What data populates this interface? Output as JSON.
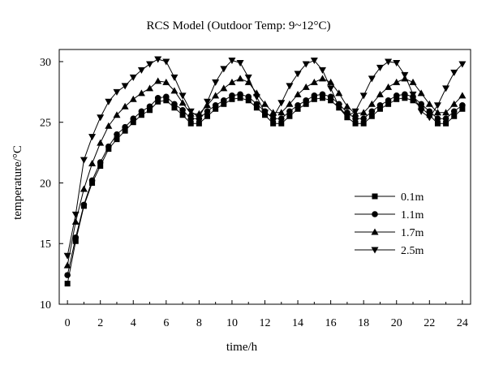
{
  "chart_data": {
    "type": "line",
    "title": "RCS Model (Outdoor Temp: 9~12°C)",
    "xlabel": "time/h",
    "ylabel": "temperature/°C",
    "xlim": [
      -0.5,
      24.5
    ],
    "ylim": [
      10,
      31
    ],
    "xticks": [
      0,
      2,
      4,
      6,
      8,
      10,
      12,
      14,
      16,
      18,
      20,
      22,
      24
    ],
    "yticks": [
      10,
      15,
      20,
      25,
      30
    ],
    "grid": false,
    "legend_position": "right",
    "x": [
      0,
      0.5,
      1,
      1.5,
      2,
      2.5,
      3,
      3.5,
      4,
      4.5,
      5,
      5.5,
      6,
      6.5,
      7,
      7.5,
      8,
      8.5,
      9,
      9.5,
      10,
      10.5,
      11,
      11.5,
      12,
      12.5,
      13,
      13.5,
      14,
      14.5,
      15,
      15.5,
      16,
      16.5,
      17,
      17.5,
      18,
      18.5,
      19,
      19.5,
      20,
      20.5,
      21,
      21.5,
      22,
      22.5,
      23,
      23.5,
      24
    ],
    "series": [
      {
        "name": "0.1m",
        "marker": "square",
        "values": [
          11.7,
          15.2,
          18.1,
          20.0,
          21.4,
          22.8,
          23.6,
          24.3,
          25.0,
          25.6,
          26.0,
          26.7,
          26.8,
          26.2,
          25.6,
          24.9,
          24.9,
          25.5,
          26.1,
          26.5,
          26.9,
          27.0,
          26.8,
          26.2,
          25.6,
          24.9,
          24.9,
          25.5,
          26.1,
          26.5,
          26.9,
          27.0,
          26.8,
          26.2,
          25.4,
          24.9,
          24.9,
          25.5,
          26.1,
          26.5,
          26.9,
          27.0,
          26.8,
          26.2,
          25.6,
          24.9,
          24.9,
          25.5,
          26.1
        ]
      },
      {
        "name": "1.1m",
        "marker": "circle",
        "values": [
          12.4,
          15.5,
          18.2,
          20.2,
          21.7,
          23.0,
          24.0,
          24.6,
          25.3,
          25.9,
          26.3,
          27.0,
          27.1,
          26.5,
          26.0,
          25.3,
          25.3,
          25.9,
          26.4,
          26.8,
          27.2,
          27.3,
          27.1,
          26.5,
          25.9,
          25.3,
          25.3,
          25.9,
          26.4,
          26.8,
          27.2,
          27.3,
          27.1,
          26.5,
          25.8,
          25.3,
          25.3,
          25.9,
          26.4,
          26.8,
          27.2,
          27.3,
          27.1,
          26.5,
          25.9,
          25.3,
          25.3,
          25.9,
          26.4
        ]
      },
      {
        "name": "1.7m",
        "marker": "triangle-up",
        "values": [
          13.2,
          16.8,
          19.5,
          21.6,
          23.3,
          24.7,
          25.6,
          26.3,
          26.9,
          27.4,
          27.8,
          28.4,
          28.3,
          27.6,
          26.6,
          25.7,
          25.7,
          26.4,
          27.2,
          27.8,
          28.3,
          28.6,
          28.3,
          27.4,
          26.5,
          25.8,
          25.8,
          26.5,
          27.3,
          27.9,
          28.3,
          28.6,
          28.3,
          27.4,
          26.3,
          25.7,
          25.8,
          26.5,
          27.3,
          27.9,
          28.3,
          28.6,
          28.3,
          27.4,
          26.5,
          25.8,
          25.8,
          26.5,
          27.2
        ]
      },
      {
        "name": "2.5m",
        "marker": "triangle-down",
        "values": [
          14.0,
          17.4,
          21.9,
          23.8,
          25.4,
          26.7,
          27.5,
          28.0,
          28.7,
          29.3,
          29.8,
          30.2,
          30.0,
          28.7,
          27.2,
          25.9,
          25.4,
          26.7,
          28.3,
          29.4,
          30.1,
          29.9,
          28.7,
          27.1,
          25.8,
          25.4,
          26.6,
          28.0,
          29.0,
          29.8,
          30.1,
          29.3,
          27.8,
          26.3,
          25.5,
          25.9,
          27.2,
          28.6,
          29.5,
          30.0,
          29.9,
          28.9,
          27.3,
          25.9,
          25.4,
          26.4,
          27.8,
          29.1,
          29.8
        ]
      }
    ]
  }
}
